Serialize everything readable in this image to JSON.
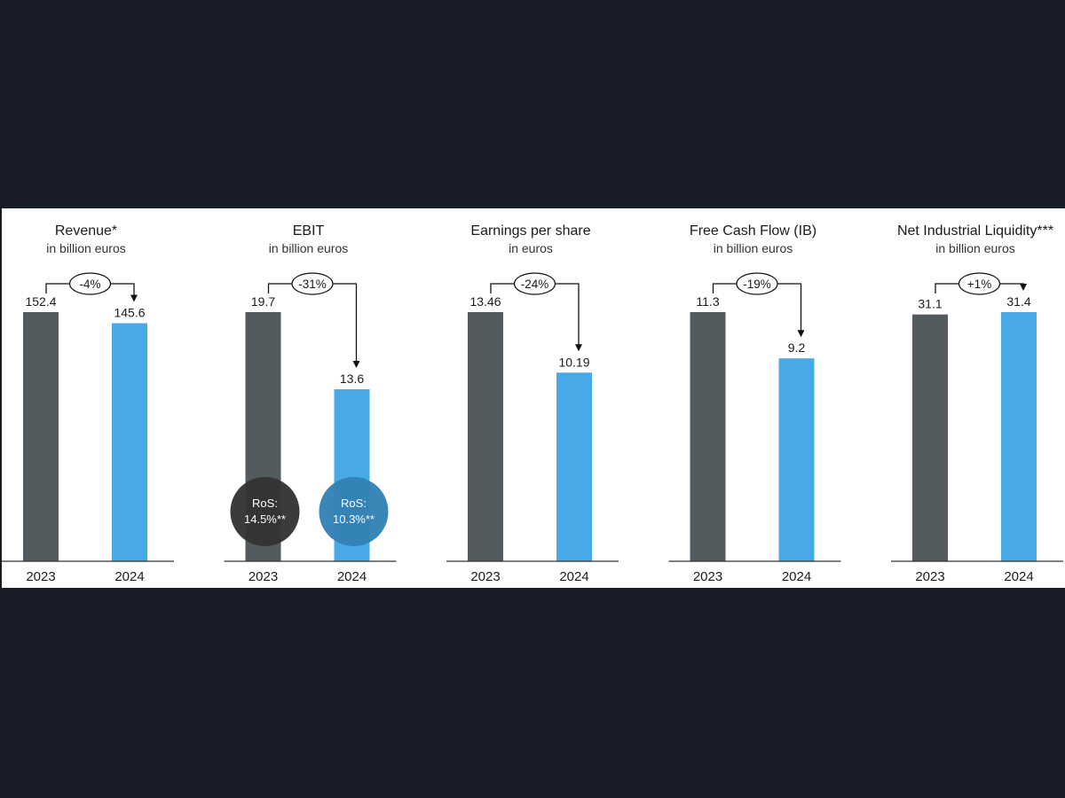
{
  "colors": {
    "prev_bar": "#545b5e",
    "curr_bar": "#47aae6",
    "ros_prev": "#333333",
    "ros_curr": "#3281b4",
    "text": "#1b1b1b",
    "axis": "#333333"
  },
  "chart_data": [
    {
      "type": "bar",
      "title": "Revenue*",
      "subtitle": "in billion euros",
      "categories": [
        "2023",
        "2024"
      ],
      "values": [
        152.4,
        145.6
      ],
      "value_labels": [
        "152.4",
        "145.6"
      ],
      "change": "-4%",
      "ros": null
    },
    {
      "type": "bar",
      "title": "EBIT",
      "subtitle": "in billion euros",
      "categories": [
        "2023",
        "2024"
      ],
      "values": [
        19.7,
        13.6
      ],
      "value_labels": [
        "19.7",
        "13.6"
      ],
      "change": "-31%",
      "ros": [
        {
          "label": "RoS:",
          "value": "14.5%**"
        },
        {
          "label": "RoS:",
          "value": "10.3%**"
        }
      ]
    },
    {
      "type": "bar",
      "title": "Earnings per share",
      "subtitle": "in euros",
      "categories": [
        "2023",
        "2024"
      ],
      "values": [
        13.46,
        10.19
      ],
      "value_labels": [
        "13.46",
        "10.19"
      ],
      "change": "-24%",
      "ros": null
    },
    {
      "type": "bar",
      "title": "Free Cash Flow (IB)",
      "subtitle": "in billion euros",
      "categories": [
        "2023",
        "2024"
      ],
      "values": [
        11.3,
        9.2
      ],
      "value_labels": [
        "11.3",
        "9.2"
      ],
      "change": "-19%",
      "ros": null
    },
    {
      "type": "bar",
      "title": "Net Industrial Liquidity***",
      "subtitle": "in billion euros",
      "categories": [
        "2023",
        "2024"
      ],
      "values": [
        31.1,
        31.4
      ],
      "value_labels": [
        "31.1",
        "31.4"
      ],
      "change": "+1%",
      "ros": null
    }
  ]
}
